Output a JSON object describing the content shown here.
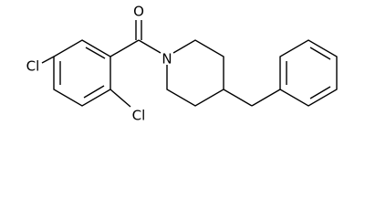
{
  "nodes": [
    {
      "label": "O"
    },
    {
      "label": "Cl"
    },
    {
      "label": "N"
    },
    {
      "label": "Cl"
    }
  ]
}
